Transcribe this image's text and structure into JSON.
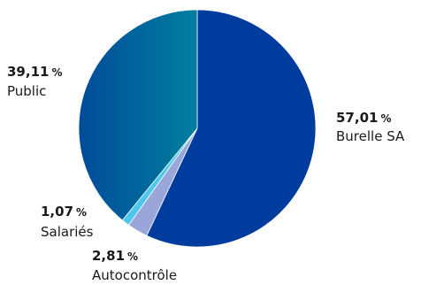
{
  "chart_data": {
    "type": "pie",
    "title": "",
    "unit": "%",
    "start_angle_deg": 0,
    "direction": "clockwise",
    "slices": [
      {
        "label": "Burelle SA",
        "value": 57.01,
        "value_text": "57,01",
        "color": "#003c9e",
        "color_light": "#0a3fa6"
      },
      {
        "label": "Autocontrôle",
        "value": 2.81,
        "value_text": "2,81",
        "color": "#9aa6da",
        "color_light": "#aab3e2"
      },
      {
        "label": "Salariés",
        "value": 1.07,
        "value_text": "1,07",
        "color": "#4ec7ee",
        "color_light": "#62d0f2"
      },
      {
        "label": "Public",
        "value": 39.11,
        "value_text": "39,11",
        "color": "#007f9e",
        "color_light": "#004b9a"
      }
    ]
  }
}
